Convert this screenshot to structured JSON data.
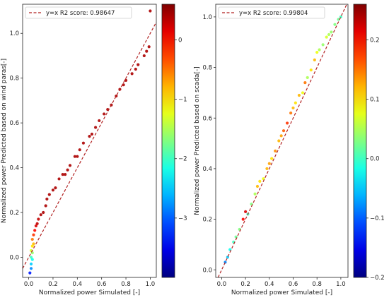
{
  "chart_data": [
    {
      "type": "scatter",
      "xlabel": "Normalized power Simulated [-]",
      "ylabel": "Normalized power Predicted based on wind paras[-]",
      "xlim": [
        -0.05,
        1.05
      ],
      "ylim": [
        -0.09,
        1.13
      ],
      "xticks": [
        0.0,
        0.2,
        0.4,
        0.6,
        0.8,
        1.0
      ],
      "yticks": [
        0.0,
        0.2,
        0.4,
        0.6,
        0.8,
        1.0
      ],
      "xtick_labels": [
        "0.0",
        "0.2",
        "0.4",
        "0.6",
        "0.8",
        "1.0"
      ],
      "ytick_labels": [
        "0.0",
        "0.2",
        "0.4",
        "0.6",
        "0.8",
        "1.0"
      ],
      "legend": {
        "label": "y=x   R2 score: 0.98647",
        "location": "upper-left"
      },
      "reference_line": {
        "label": "y=x",
        "color": "#b22222",
        "style": "dashed"
      },
      "colorbar": {
        "colormap": "jet",
        "min": -4.0,
        "max": 0.6,
        "ticks": [
          -3,
          -2,
          -1,
          0
        ],
        "tick_labels": [
          "−3",
          "−2",
          "−1",
          "0"
        ]
      },
      "series": [
        {
          "points": [
            [
              0.01,
              -0.07,
              -3.3
            ],
            [
              0.02,
              -0.05,
              -2.8
            ],
            [
              0.02,
              -0.03,
              -2.5
            ],
            [
              0.03,
              -0.01,
              -2.2
            ],
            [
              0.02,
              0.0,
              -2.0
            ],
            [
              0.03,
              0.02,
              -1.6
            ],
            [
              0.02,
              0.03,
              -1.3
            ],
            [
              0.03,
              0.05,
              -1.0
            ],
            [
              0.04,
              0.06,
              -0.8
            ],
            [
              0.03,
              0.08,
              -0.5
            ],
            [
              0.04,
              0.1,
              -0.2
            ],
            [
              0.05,
              0.12,
              0.0
            ],
            [
              0.06,
              0.14,
              0.2
            ],
            [
              0.07,
              0.15,
              0.3
            ],
            [
              0.08,
              0.17,
              0.3
            ],
            [
              0.1,
              0.19,
              0.4
            ],
            [
              0.12,
              0.2,
              0.4
            ],
            [
              0.14,
              0.23,
              0.4
            ],
            [
              0.15,
              0.26,
              0.4
            ],
            [
              0.17,
              0.28,
              0.4
            ],
            [
              0.2,
              0.3,
              0.4
            ],
            [
              0.22,
              0.31,
              0.4
            ],
            [
              0.25,
              0.35,
              0.4
            ],
            [
              0.28,
              0.37,
              0.4
            ],
            [
              0.3,
              0.37,
              0.4
            ],
            [
              0.32,
              0.39,
              0.4
            ],
            [
              0.34,
              0.41,
              0.4
            ],
            [
              0.38,
              0.45,
              0.4
            ],
            [
              0.4,
              0.45,
              0.4
            ],
            [
              0.42,
              0.48,
              0.4
            ],
            [
              0.45,
              0.51,
              0.4
            ],
            [
              0.5,
              0.54,
              0.4
            ],
            [
              0.52,
              0.55,
              0.4
            ],
            [
              0.55,
              0.58,
              0.4
            ],
            [
              0.58,
              0.61,
              0.4
            ],
            [
              0.62,
              0.64,
              0.4
            ],
            [
              0.65,
              0.66,
              0.4
            ],
            [
              0.68,
              0.68,
              0.4
            ],
            [
              0.72,
              0.72,
              0.4
            ],
            [
              0.75,
              0.75,
              0.4
            ],
            [
              0.78,
              0.77,
              0.4
            ],
            [
              0.8,
              0.79,
              0.4
            ],
            [
              0.85,
              0.82,
              0.4
            ],
            [
              0.88,
              0.84,
              0.4
            ],
            [
              0.9,
              0.86,
              0.4
            ],
            [
              0.95,
              0.9,
              0.4
            ],
            [
              0.97,
              0.92,
              0.4
            ],
            [
              0.99,
              0.94,
              0.4
            ],
            [
              1.0,
              1.1,
              0.4
            ]
          ]
        }
      ]
    },
    {
      "type": "scatter",
      "xlabel": "Normalized power Simulated [-]",
      "ylabel": "Normalized power Predicted based on scada[-]",
      "xlim": [
        -0.05,
        1.06
      ],
      "ylim": [
        -0.03,
        1.05
      ],
      "xticks": [
        0.0,
        0.2,
        0.4,
        0.6,
        0.8,
        1.0
      ],
      "yticks": [
        0.0,
        0.2,
        0.4,
        0.6,
        0.8,
        1.0
      ],
      "xtick_labels": [
        "0.0",
        "0.2",
        "0.4",
        "0.6",
        "0.8",
        "1.0"
      ],
      "ytick_labels": [
        "0.0",
        "0.2",
        "0.4",
        "0.6",
        "0.8",
        "1.0"
      ],
      "legend": {
        "label": "y=x   R2 score: 0.99804",
        "location": "upper-left"
      },
      "reference_line": {
        "label": "y=x",
        "color": "#b22222",
        "style": "dashed"
      },
      "colorbar": {
        "colormap": "jet",
        "min": -0.2,
        "max": 0.26,
        "ticks": [
          -0.2,
          -0.1,
          0.0,
          0.1,
          0.2
        ],
        "tick_labels": [
          "−0.2",
          "−0.1",
          "0.0",
          "0.1",
          "0.2"
        ]
      },
      "series": [
        {
          "points": [
            [
              0.03,
              0.03,
              -0.08
            ],
            [
              0.05,
              0.05,
              -0.05
            ],
            [
              0.07,
              0.08,
              -0.02
            ],
            [
              0.1,
              0.11,
              0.0
            ],
            [
              0.12,
              0.13,
              0.02
            ],
            [
              0.15,
              0.16,
              0.03
            ],
            [
              0.18,
              0.2,
              0.2
            ],
            [
              0.2,
              0.23,
              0.22
            ],
            [
              0.22,
              0.22,
              0.0
            ],
            [
              0.25,
              0.26,
              0.03
            ],
            [
              0.28,
              0.3,
              0.05
            ],
            [
              0.3,
              0.33,
              0.12
            ],
            [
              0.32,
              0.35,
              0.1
            ],
            [
              0.35,
              0.36,
              0.08
            ],
            [
              0.38,
              0.4,
              0.12
            ],
            [
              0.4,
              0.42,
              0.13
            ],
            [
              0.42,
              0.44,
              0.1
            ],
            [
              0.45,
              0.47,
              0.14
            ],
            [
              0.48,
              0.51,
              0.12
            ],
            [
              0.5,
              0.53,
              0.13
            ],
            [
              0.52,
              0.55,
              0.16
            ],
            [
              0.55,
              0.58,
              0.18
            ],
            [
              0.58,
              0.62,
              0.15
            ],
            [
              0.6,
              0.64,
              0.12
            ],
            [
              0.62,
              0.66,
              0.1
            ],
            [
              0.65,
              0.69,
              0.12
            ],
            [
              0.68,
              0.7,
              0.08
            ],
            [
              0.7,
              0.74,
              0.15
            ],
            [
              0.72,
              0.76,
              0.05
            ],
            [
              0.75,
              0.79,
              0.1
            ],
            [
              0.78,
              0.83,
              0.12
            ],
            [
              0.8,
              0.86,
              0.08
            ],
            [
              0.82,
              0.87,
              0.05
            ],
            [
              0.85,
              0.89,
              0.04
            ],
            [
              0.88,
              0.92,
              0.07
            ],
            [
              0.9,
              0.93,
              0.05
            ],
            [
              0.92,
              0.94,
              0.04
            ],
            [
              0.95,
              0.97,
              0.03
            ],
            [
              0.98,
              0.99,
              0.02
            ],
            [
              1.0,
              1.0,
              0.0
            ]
          ]
        }
      ]
    }
  ]
}
